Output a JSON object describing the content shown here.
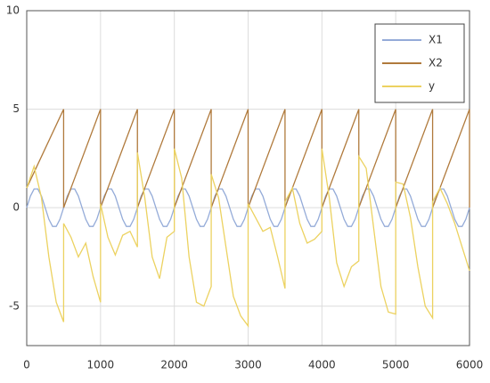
{
  "chart_data": {
    "type": "line",
    "xlim": [
      0,
      6000
    ],
    "xticks": [
      0,
      1000,
      2000,
      3000,
      4000,
      5000,
      6000
    ],
    "ylim": [
      -7,
      10
    ],
    "yticks": [
      -5,
      0,
      5,
      10
    ],
    "grid": true,
    "legend": "top-right",
    "series": [
      {
        "name": "X1",
        "color": "#94abd8",
        "x": [
          0,
          50,
          100,
          150,
          200,
          250,
          300,
          350,
          400,
          450,
          500,
          550,
          600,
          650,
          700,
          750,
          800,
          850,
          900,
          950,
          1000,
          1050,
          1100,
          1150,
          1200,
          1250,
          1300,
          1350,
          1400,
          1450,
          1500,
          1550,
          1600,
          1650,
          1700,
          1750,
          1800,
          1850,
          1900,
          1950,
          2000,
          2050,
          2100,
          2150,
          2200,
          2250,
          2300,
          2350,
          2400,
          2450,
          2500,
          2550,
          2600,
          2650,
          2700,
          2750,
          2800,
          2850,
          2900,
          2950,
          3000,
          3050,
          3100,
          3150,
          3200,
          3250,
          3300,
          3350,
          3400,
          3450,
          3500,
          3550,
          3600,
          3650,
          3700,
          3750,
          3800,
          3850,
          3900,
          3950,
          4000,
          4050,
          4100,
          4150,
          4200,
          4250,
          4300,
          4350,
          4400,
          4450,
          4500,
          4550,
          4600,
          4650,
          4700,
          4750,
          4800,
          4850,
          4900,
          4950,
          5000,
          5050,
          5100,
          5150,
          5200,
          5250,
          5300,
          5350,
          5400,
          5450,
          5500,
          5550,
          5600,
          5650,
          5700,
          5750,
          5800,
          5850,
          5900,
          5950,
          6000
        ],
        "values": [
          0,
          0.588,
          0.951,
          0.951,
          0.588,
          0,
          -0.588,
          -0.951,
          -0.951,
          -0.588,
          0,
          0.588,
          0.951,
          0.951,
          0.588,
          0,
          -0.588,
          -0.951,
          -0.951,
          -0.588,
          0,
          0.588,
          0.951,
          0.951,
          0.588,
          0,
          -0.588,
          -0.951,
          -0.951,
          -0.588,
          0,
          0.588,
          0.951,
          0.951,
          0.588,
          0,
          -0.588,
          -0.951,
          -0.951,
          -0.588,
          0,
          0.588,
          0.951,
          0.951,
          0.588,
          0,
          -0.588,
          -0.951,
          -0.951,
          -0.588,
          0,
          0.588,
          0.951,
          0.951,
          0.588,
          0,
          -0.588,
          -0.951,
          -0.951,
          -0.588,
          0,
          0.588,
          0.951,
          0.951,
          0.588,
          0,
          -0.588,
          -0.951,
          -0.951,
          -0.588,
          0,
          0.588,
          0.951,
          0.951,
          0.588,
          0,
          -0.588,
          -0.951,
          -0.951,
          -0.588,
          0,
          0.588,
          0.951,
          0.951,
          0.588,
          0,
          -0.588,
          -0.951,
          -0.951,
          -0.588,
          0,
          0.588,
          0.951,
          0.951,
          0.588,
          0,
          -0.588,
          -0.951,
          -0.951,
          -0.588,
          0,
          0.588,
          0.951,
          0.951,
          0.588,
          0,
          -0.588,
          -0.951,
          -0.951,
          -0.588,
          0,
          0.588,
          0.951,
          0.951,
          0.588,
          0,
          -0.588,
          -0.951,
          -0.951,
          -0.588,
          0
        ]
      },
      {
        "name": "X2",
        "color": "#b07a3c",
        "x": [
          0,
          500,
          500,
          1000,
          1000,
          1500,
          1500,
          2000,
          2000,
          2500,
          2500,
          3000,
          3000,
          3500,
          3500,
          4000,
          4000,
          4500,
          4500,
          5000,
          5000,
          5500,
          5500,
          6000,
          6000
        ],
        "values": [
          1,
          5,
          0,
          5,
          0,
          5,
          0,
          5,
          0,
          5,
          0,
          5,
          0,
          5,
          0,
          5,
          0,
          5,
          0,
          5,
          0,
          5,
          0,
          5,
          0
        ]
      },
      {
        "name": "y",
        "color": "#ecd260",
        "x": [
          0,
          100,
          200,
          300,
          400,
          500,
          500,
          600,
          700,
          800,
          900,
          1000,
          1000,
          1100,
          1200,
          1300,
          1400,
          1500,
          1500,
          1600,
          1700,
          1800,
          1900,
          2000,
          2000,
          2100,
          2200,
          2300,
          2400,
          2500,
          2500,
          2600,
          2700,
          2800,
          2900,
          3000,
          3000,
          3100,
          3200,
          3300,
          3400,
          3500,
          3500,
          3600,
          3700,
          3800,
          3900,
          4000,
          4000,
          4100,
          4200,
          4300,
          4400,
          4500,
          4500,
          4600,
          4700,
          4800,
          4900,
          5000,
          5000,
          5100,
          5200,
          5300,
          5400,
          5500,
          5500,
          5600,
          5700,
          5800,
          5900,
          6000
        ],
        "values": [
          1,
          2.1,
          0.5,
          -2.5,
          -4.8,
          -5.8,
          -0.8,
          -1.5,
          -2.5,
          -1.8,
          -3.5,
          -4.8,
          0.2,
          -1.5,
          -2.4,
          -1.4,
          -1.2,
          -2,
          2.8,
          0.5,
          -2.5,
          -3.6,
          -1.5,
          -1.2,
          3,
          1.5,
          -2.5,
          -4.8,
          -5,
          -4,
          1.7,
          0.5,
          -2,
          -4.5,
          -5.5,
          -6,
          0.2,
          -0.5,
          -1.2,
          -1,
          -2.5,
          -4.1,
          0.3,
          1,
          -0.8,
          -1.8,
          -1.6,
          -1.2,
          3,
          0.5,
          -2.8,
          -4,
          -3,
          -2.7,
          2.6,
          2,
          -1,
          -4,
          -5.3,
          -5.4,
          1.3,
          1.2,
          -0.5,
          -3,
          -5,
          -5.6,
          0.3,
          1,
          0.2,
          -0.8,
          -2,
          -3.2
        ]
      }
    ]
  }
}
